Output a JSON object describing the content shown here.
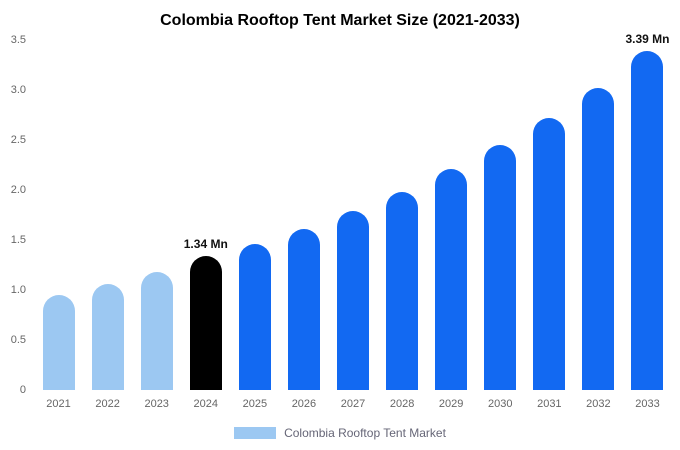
{
  "title": "Colombia Rooftop Tent Market Size (2021-2033)",
  "legend": {
    "label": "Colombia Rooftop Tent Market",
    "swatch_color": "#9cc8f2"
  },
  "colors": {
    "historical_bar": "#9cc8f2",
    "base_year_bar": "#000000",
    "forecast_bar": "#1269f2",
    "tick_text": "#666666",
    "annotation_text": "#111111"
  },
  "chart_data": {
    "type": "bar",
    "title": "Colombia Rooftop Tent Market Size (2021-2033)",
    "xlabel": "",
    "ylabel": "",
    "categories": [
      "2021",
      "2022",
      "2023",
      "2024",
      "2025",
      "2026",
      "2027",
      "2028",
      "2029",
      "2030",
      "2031",
      "2032",
      "2033"
    ],
    "values": [
      0.95,
      1.06,
      1.18,
      1.34,
      1.46,
      1.61,
      1.79,
      1.98,
      2.21,
      2.45,
      2.72,
      3.02,
      3.39
    ],
    "unit": "Mn",
    "bar_colors": [
      "#9cc8f2",
      "#9cc8f2",
      "#9cc8f2",
      "#000000",
      "#1269f2",
      "#1269f2",
      "#1269f2",
      "#1269f2",
      "#1269f2",
      "#1269f2",
      "#1269f2",
      "#1269f2",
      "#1269f2"
    ],
    "annotations": [
      {
        "category": "2024",
        "text": "1.34 Mn"
      },
      {
        "category": "2033",
        "text": "3.39 Mn"
      }
    ],
    "ylim": [
      0,
      3.5
    ],
    "yticks": [
      0,
      0.5,
      1.0,
      1.5,
      2.0,
      2.5,
      3.0,
      3.5
    ],
    "ytick_labels": [
      "0",
      "0.5",
      "1.0",
      "1.5",
      "2.0",
      "2.5",
      "3.0",
      "3.5"
    ],
    "grid": false,
    "legend_position": "bottom",
    "legend_entries": [
      "Colombia Rooftop Tent Market"
    ]
  }
}
